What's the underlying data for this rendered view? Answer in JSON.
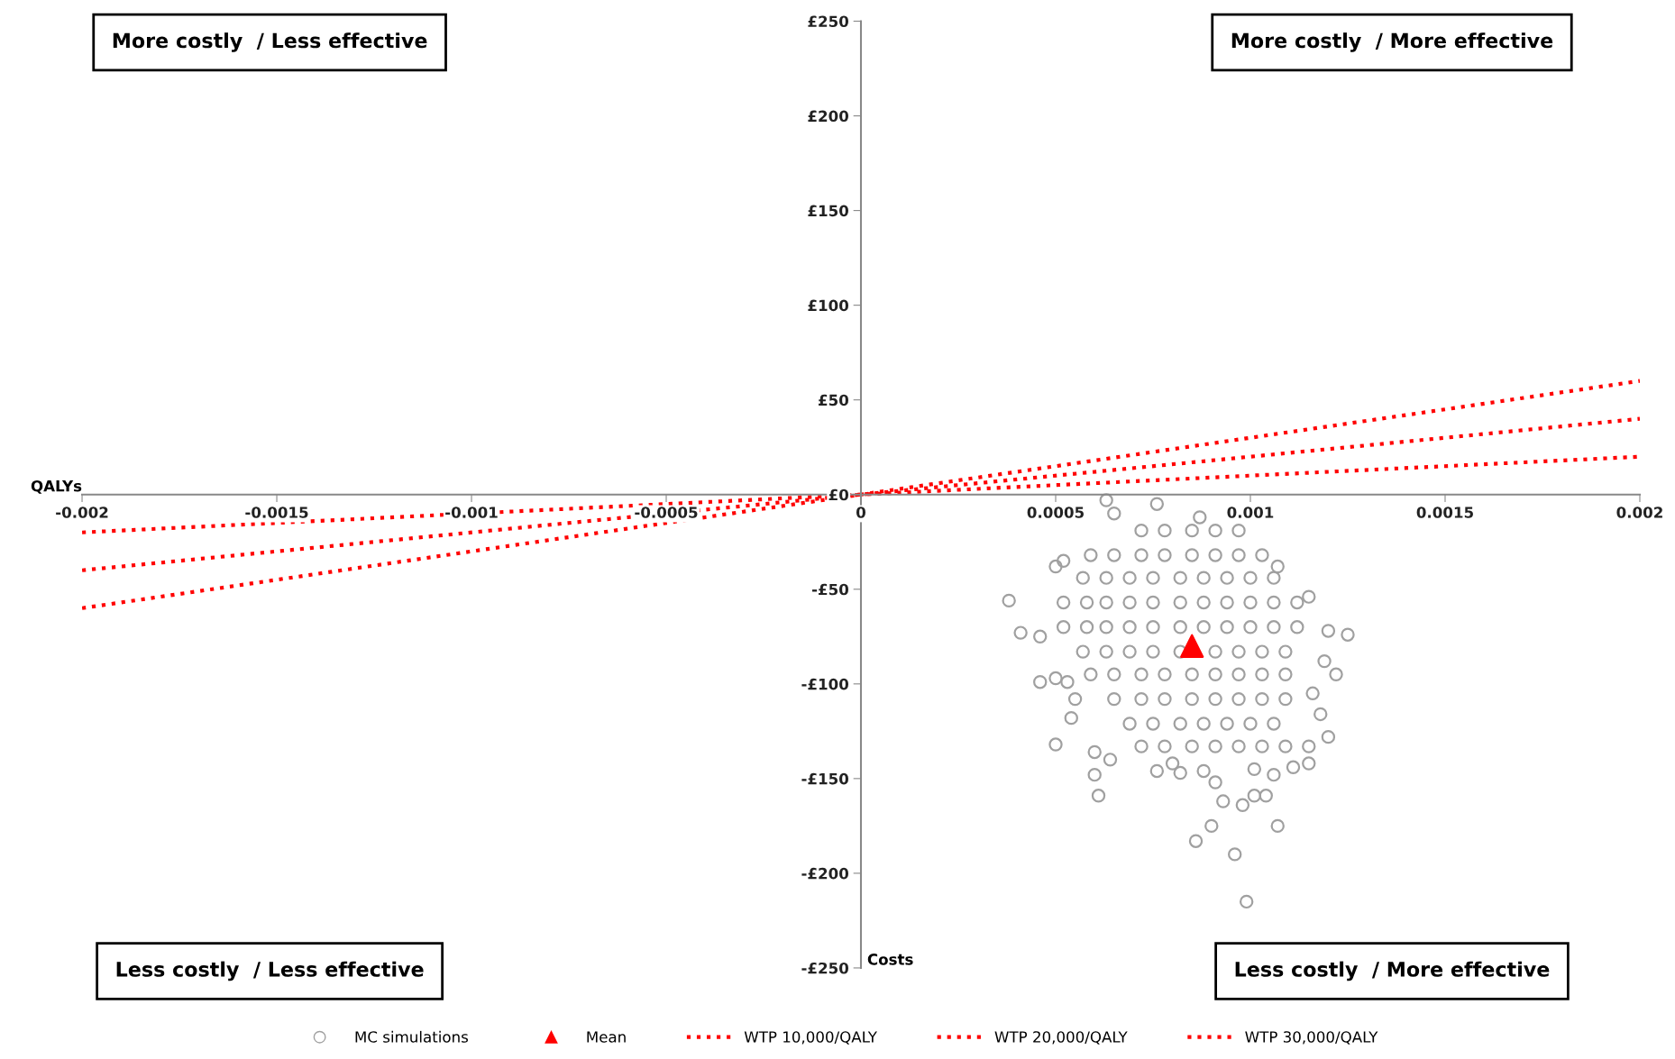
{
  "chart_data": {
    "type": "scatter",
    "xlabel": "QALYs",
    "ylabel": "Costs",
    "xlim": [
      -0.002,
      0.002
    ],
    "ylim": [
      -250,
      250
    ],
    "xticks": [
      -0.002,
      -0.0015,
      -0.001,
      -0.0005,
      0,
      0.0005,
      0.001,
      0.0015,
      0.002
    ],
    "yticks": [
      {
        "value": 250,
        "label": "£250"
      },
      {
        "value": 200,
        "label": "£200"
      },
      {
        "value": 150,
        "label": "£150"
      },
      {
        "value": 100,
        "label": "£100"
      },
      {
        "value": 50,
        "label": "£50"
      },
      {
        "value": 0,
        "label": "£0"
      },
      {
        "value": -50,
        "label": "-£50"
      },
      {
        "value": -100,
        "label": "-£100"
      },
      {
        "value": -150,
        "label": "-£150"
      },
      {
        "value": -200,
        "label": "-£200"
      },
      {
        "value": -250,
        "label": "-£250"
      }
    ],
    "legend": "bottom",
    "annotations": [
      "More costly  / Less effective",
      "More costly  / More effective",
      "Less costly  / Less effective",
      "Less costly  / More effective"
    ],
    "series": [
      {
        "name": "MC simulations",
        "marker": "circle",
        "color": "#a0a0a0",
        "x": [
          0.00072,
          0.00078,
          0.00085,
          0.00091,
          0.00097,
          0.00059,
          0.00065,
          0.00072,
          0.00078,
          0.00085,
          0.00091,
          0.00097,
          0.00103,
          0.00057,
          0.00063,
          0.00069,
          0.00075,
          0.00082,
          0.00088,
          0.00094,
          0.001,
          0.00106,
          0.00052,
          0.00058,
          0.00063,
          0.00069,
          0.00075,
          0.00082,
          0.00088,
          0.00094,
          0.001,
          0.00106,
          0.00112,
          0.00052,
          0.00058,
          0.00063,
          0.00069,
          0.00075,
          0.00082,
          0.00088,
          0.00094,
          0.001,
          0.00106,
          0.00112,
          0.00057,
          0.00063,
          0.00069,
          0.00075,
          0.00082,
          0.00091,
          0.00097,
          0.00103,
          0.00109,
          0.00059,
          0.00065,
          0.00072,
          0.00078,
          0.00085,
          0.00091,
          0.00097,
          0.00103,
          0.00109,
          0.00065,
          0.00072,
          0.00078,
          0.00085,
          0.00091,
          0.00097,
          0.00103,
          0.00109,
          0.00069,
          0.00075,
          0.00082,
          0.00088,
          0.00094,
          0.001,
          0.00106,
          0.00072,
          0.00078,
          0.00085,
          0.00091,
          0.00097,
          0.00103,
          0.00109,
          0.00115,
          0.00063,
          0.00076,
          0.00065,
          0.00087,
          0.00038,
          0.00041,
          0.00046,
          0.0005,
          0.00052,
          0.00107,
          0.00115,
          0.0012,
          0.00125,
          0.00119,
          0.00122,
          0.00046,
          0.0005,
          0.00053,
          0.00055,
          0.00054,
          0.0005,
          0.0006,
          0.00064,
          0.0006,
          0.00061,
          0.00076,
          0.0008,
          0.00082,
          0.00088,
          0.00091,
          0.00093,
          0.00098,
          0.00101,
          0.00104,
          0.00106,
          0.00101,
          0.0009,
          0.00107,
          0.00086,
          0.00096,
          0.00099,
          0.00111,
          0.00115,
          0.0012,
          0.00118,
          0.00116
        ],
        "values": [
          -19,
          -19,
          -19,
          -19,
          -19,
          -32,
          -32,
          -32,
          -32,
          -32,
          -32,
          -32,
          -32,
          -44,
          -44,
          -44,
          -44,
          -44,
          -44,
          -44,
          -44,
          -44,
          -57,
          -57,
          -57,
          -57,
          -57,
          -57,
          -57,
          -57,
          -57,
          -57,
          -57,
          -70,
          -70,
          -70,
          -70,
          -70,
          -70,
          -70,
          -70,
          -70,
          -70,
          -70,
          -83,
          -83,
          -83,
          -83,
          -83,
          -83,
          -83,
          -83,
          -83,
          -95,
          -95,
          -95,
          -95,
          -95,
          -95,
          -95,
          -95,
          -95,
          -108,
          -108,
          -108,
          -108,
          -108,
          -108,
          -108,
          -108,
          -121,
          -121,
          -121,
          -121,
          -121,
          -121,
          -121,
          -133,
          -133,
          -133,
          -133,
          -133,
          -133,
          -133,
          -133,
          -3,
          -5,
          -10,
          -12,
          -56,
          -73,
          -75,
          -38,
          -35,
          -38,
          -54,
          -72,
          -74,
          -88,
          -95,
          -99,
          -97,
          -99,
          -108,
          -118,
          -132,
          -136,
          -140,
          -148,
          -159,
          -146,
          -142,
          -147,
          -146,
          -152,
          -162,
          -164,
          -159,
          -159,
          -148,
          -145,
          -175,
          -175,
          -183,
          -190,
          -215,
          -144,
          -142,
          -128,
          -116,
          -105
        ]
      },
      {
        "name": "Mean",
        "marker": "triangle",
        "color": "#ff0000",
        "x": [
          0.00085
        ],
        "values": [
          -80
        ]
      },
      {
        "name": "WTP 10,000/QALY",
        "type": "line",
        "line_style": "dotted",
        "marker": "none",
        "color": "#ff0000",
        "x": [
          -0.002,
          0.002
        ],
        "values": [
          -20,
          20
        ]
      },
      {
        "name": "WTP 20,000/QALY",
        "type": "line",
        "line_style": "dotted",
        "marker": "none",
        "color": "#ff0000",
        "x": [
          -0.002,
          0.002
        ],
        "values": [
          -40,
          40
        ]
      },
      {
        "name": "WTP 30,000/QALY",
        "type": "line",
        "line_style": "dotted",
        "marker": "none",
        "color": "#ff0000",
        "x": [
          -0.002,
          0.002
        ],
        "values": [
          -60,
          60
        ]
      }
    ]
  }
}
